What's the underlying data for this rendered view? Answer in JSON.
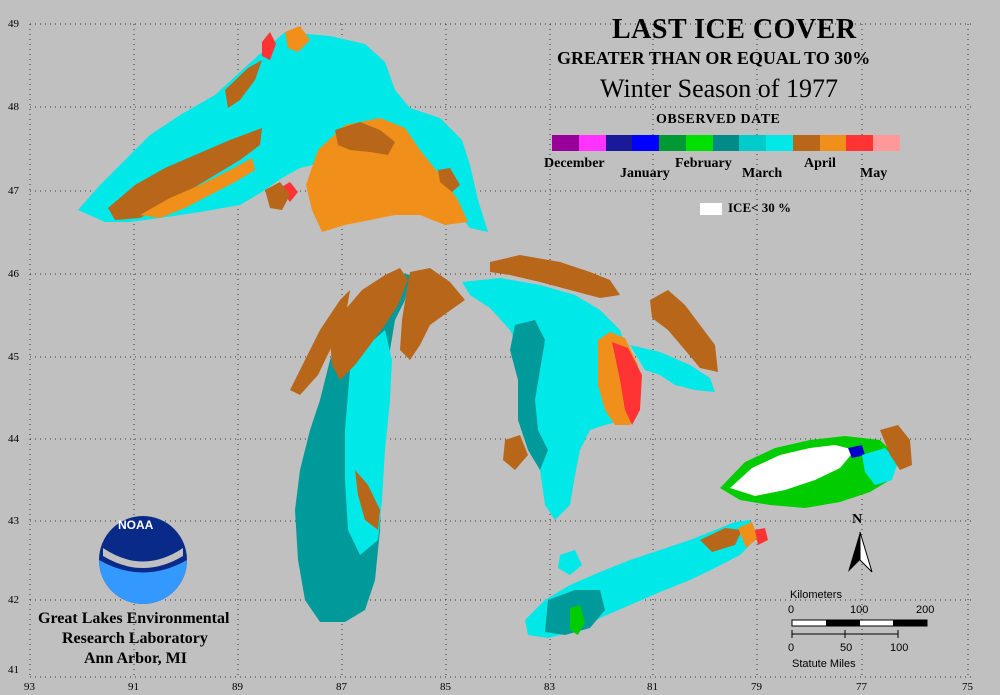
{
  "title": "LAST ICE COVER",
  "subtitle": "GREATER THAN OR EQUAL TO 30%",
  "season": "Winter Season of 1977",
  "legend": {
    "heading": "OBSERVED DATE",
    "months": [
      "December",
      "January",
      "February",
      "March",
      "April",
      "May"
    ],
    "colors": [
      "#990099",
      "#ff33ff",
      "#1a1a99",
      "#0000ff",
      "#009933",
      "#00e000",
      "#008b8b",
      "#00cccc",
      "#00e8e8",
      "#b8661a",
      "#f0901a",
      "#ff3333",
      "#ff9999"
    ],
    "ice_label": "ICE< 30 %"
  },
  "lab": {
    "line1": "Great Lakes Environmental",
    "line2": "Research Laboratory",
    "line3": "Ann Arbor, MI"
  },
  "logo_text": "NOAA",
  "north": "N",
  "scale": {
    "km_label": "Kilometers",
    "km_ticks": [
      "0",
      "100",
      "200"
    ],
    "mi_label": "Statute Miles",
    "mi_ticks": [
      "0",
      "50",
      "100"
    ]
  },
  "latitudes": [
    "49",
    "48",
    "47",
    "46",
    "45",
    "44",
    "43",
    "42",
    "41"
  ],
  "longitudes": [
    "93",
    "91",
    "89",
    "87",
    "85",
    "83",
    "81",
    "79",
    "77",
    "75"
  ]
}
